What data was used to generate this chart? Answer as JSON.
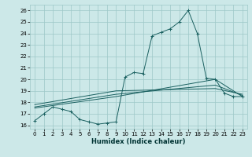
{
  "xlabel": "Humidex (Indice chaleur)",
  "xlim": [
    -0.5,
    23.5
  ],
  "ylim": [
    15.7,
    26.5
  ],
  "xticks": [
    0,
    1,
    2,
    3,
    4,
    5,
    6,
    7,
    8,
    9,
    10,
    11,
    12,
    13,
    14,
    15,
    16,
    17,
    18,
    19,
    20,
    21,
    22,
    23
  ],
  "yticks": [
    16,
    17,
    18,
    19,
    20,
    21,
    22,
    23,
    24,
    25,
    26
  ],
  "bg_color": "#cce8e8",
  "grid_color": "#9ec8c8",
  "line_color": "#1a6060",
  "line1_x": [
    0,
    1,
    2,
    3,
    4,
    5,
    6,
    7,
    8,
    9,
    10,
    11,
    12,
    13,
    14,
    15,
    16,
    17,
    18,
    19,
    20,
    21,
    22,
    23
  ],
  "line1_y": [
    16.4,
    17.0,
    17.6,
    17.4,
    17.2,
    16.5,
    16.3,
    16.1,
    16.2,
    16.3,
    20.2,
    20.6,
    20.5,
    23.8,
    24.1,
    24.4,
    25.0,
    26.0,
    24.0,
    20.1,
    20.0,
    18.8,
    18.5,
    18.5
  ],
  "line2_x": [
    0,
    9,
    20,
    23
  ],
  "line2_y": [
    17.5,
    18.5,
    20.0,
    18.5
  ],
  "line3_x": [
    0,
    9,
    20,
    23
  ],
  "line3_y": [
    17.6,
    18.7,
    19.5,
    18.6
  ],
  "line4_x": [
    0,
    9,
    20,
    23
  ],
  "line4_y": [
    17.8,
    19.0,
    19.2,
    18.7
  ]
}
